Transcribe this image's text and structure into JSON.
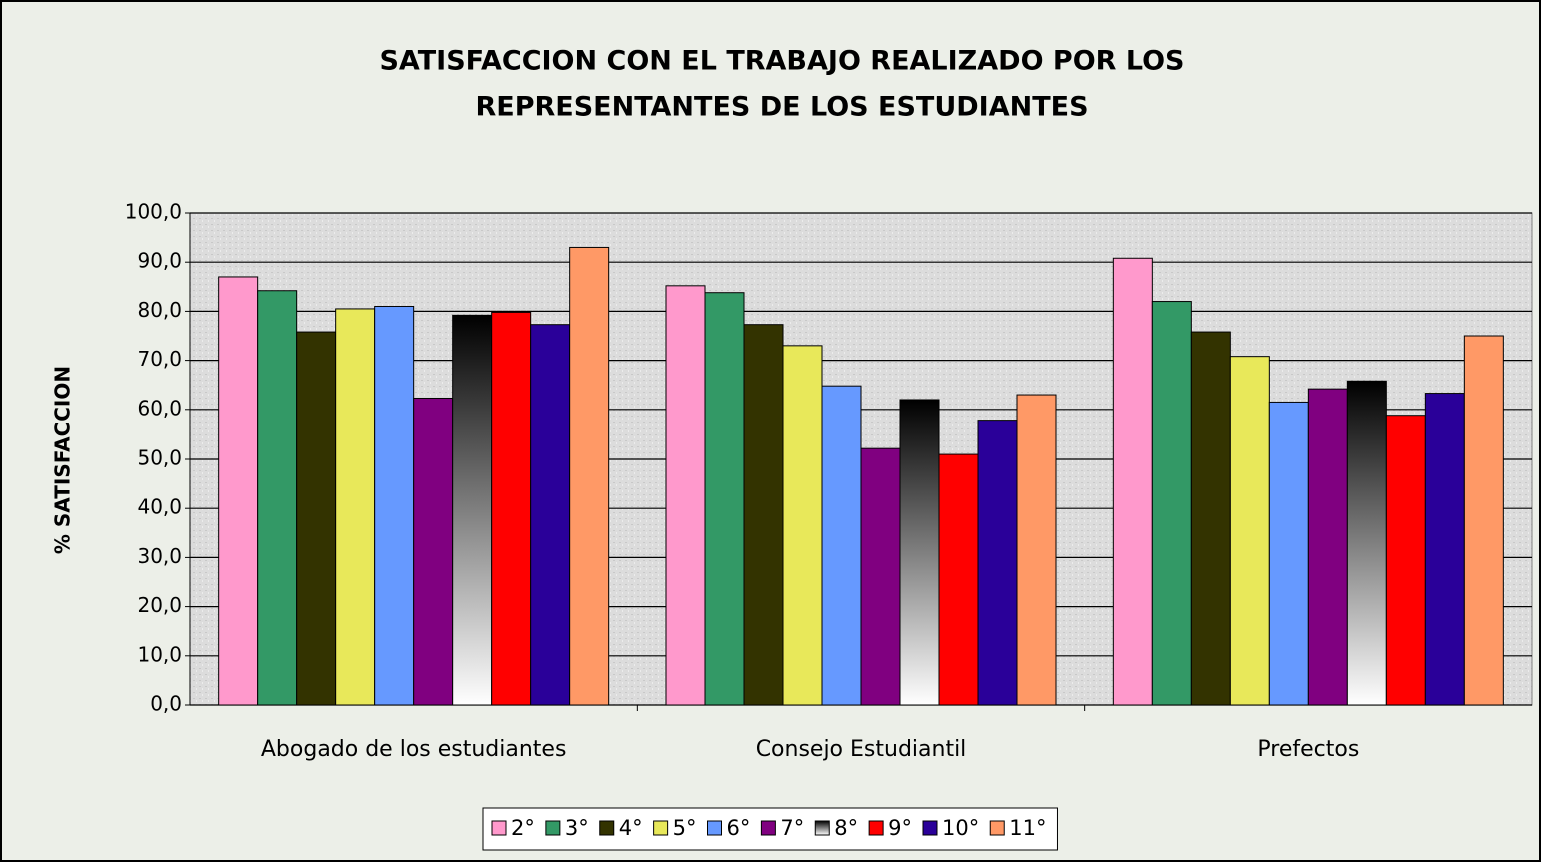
{
  "chart_data": {
    "type": "bar",
    "title": [
      "SATISFACCION CON EL TRABAJO REALIZADO POR LOS",
      "REPRESENTANTES DE LOS ESTUDIANTES"
    ],
    "y_label": "% SATISFACCION",
    "categories": [
      "Abogado de los estudiantes",
      "Consejo Estudiantil",
      "Prefectos"
    ],
    "series": [
      {
        "name": "2°",
        "color": "#ff99cc",
        "values": [
          87.0,
          85.2,
          90.8
        ]
      },
      {
        "name": "3°",
        "color": "#339966",
        "values": [
          84.2,
          83.8,
          82.0
        ]
      },
      {
        "name": "4°",
        "color": "#333300",
        "values": [
          75.8,
          77.3,
          75.8
        ]
      },
      {
        "name": "5°",
        "color": "#e8e85a",
        "values": [
          80.5,
          73.0,
          70.8
        ]
      },
      {
        "name": "6°",
        "color": "#6699ff",
        "values": [
          81.0,
          64.8,
          61.5
        ]
      },
      {
        "name": "7°",
        "color": "#800080",
        "values": [
          62.3,
          52.2,
          64.2
        ]
      },
      {
        "name": "8°",
        "color": "#000000",
        "gradient": true,
        "values": [
          79.2,
          62.0,
          65.8
        ]
      },
      {
        "name": "9°",
        "color": "#ff0000",
        "values": [
          79.8,
          51.0,
          58.8
        ]
      },
      {
        "name": "10°",
        "color": "#2a0099",
        "values": [
          77.3,
          57.8,
          63.3
        ]
      },
      {
        "name": "11°",
        "color": "#ff9966",
        "values": [
          93.0,
          63.0,
          75.0
        ]
      }
    ],
    "ylim": [
      0,
      100
    ],
    "yticks": [
      {
        "value": 0,
        "label": "0,0"
      },
      {
        "value": 10,
        "label": "10,0"
      },
      {
        "value": 20,
        "label": "20,0"
      },
      {
        "value": 30,
        "label": "30,0"
      },
      {
        "value": 40,
        "label": "40,0"
      },
      {
        "value": 50,
        "label": "50,0"
      },
      {
        "value": 60,
        "label": "60,0"
      },
      {
        "value": 70,
        "label": "70,0"
      },
      {
        "value": 80,
        "label": "80,0"
      },
      {
        "value": 90,
        "label": "90,0"
      },
      {
        "value": 100,
        "label": "100,0"
      }
    ],
    "grid": true,
    "legend": "bottom"
  }
}
